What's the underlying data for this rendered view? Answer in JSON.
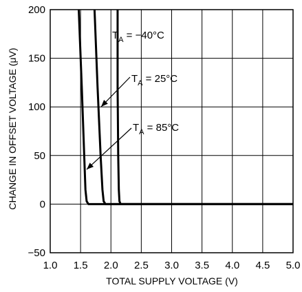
{
  "chart_data": {
    "type": "line",
    "title": "",
    "xlabel": "TOTAL SUPPLY VOLTAGE (V)",
    "ylabel": "CHANGE IN OFFSET VOLTAGE (μV)",
    "xlim": [
      1.0,
      5.0
    ],
    "ylim": [
      -50,
      200
    ],
    "x_ticks": [
      1.0,
      1.5,
      2.0,
      2.5,
      3.0,
      3.5,
      4.0,
      4.5,
      5.0
    ],
    "x_tick_labels": [
      "1.0",
      "1.5",
      "2.0",
      "2.5",
      "3.0",
      "3.5",
      "4.0",
      "4.5",
      "5.0"
    ],
    "y_ticks": [
      -50,
      0,
      50,
      100,
      150,
      200
    ],
    "y_tick_labels": [
      "−50",
      "0",
      "50",
      "100",
      "150",
      "200"
    ],
    "grid": true,
    "series": [
      {
        "name": "T_A = 85°C",
        "x": [
          1.47,
          1.52,
          1.56,
          1.58,
          1.6,
          1.63,
          1.7,
          5.0
        ],
        "y": [
          200,
          120,
          50,
          15,
          3,
          0,
          0,
          0
        ]
      },
      {
        "name": "T_A = 25°C",
        "x": [
          1.73,
          1.78,
          1.83,
          1.86,
          1.88,
          1.91,
          1.98,
          5.0
        ],
        "y": [
          200,
          120,
          50,
          15,
          3,
          0,
          0,
          0
        ]
      },
      {
        "name": "T_A = −40°C",
        "x": [
          2.11,
          2.11,
          2.12,
          2.13,
          2.14,
          2.16,
          2.22,
          5.0
        ],
        "y": [
          200,
          120,
          50,
          15,
          3,
          0,
          0,
          0
        ]
      }
    ],
    "annotations": [
      {
        "text_main": "T",
        "text_sub": "A",
        "text_rest": " = −40°C"
      },
      {
        "text_main": "T",
        "text_sub": "A",
        "text_rest": " = 25°C"
      },
      {
        "text_main": "T",
        "text_sub": "A",
        "text_rest": " = 85°C"
      }
    ]
  }
}
